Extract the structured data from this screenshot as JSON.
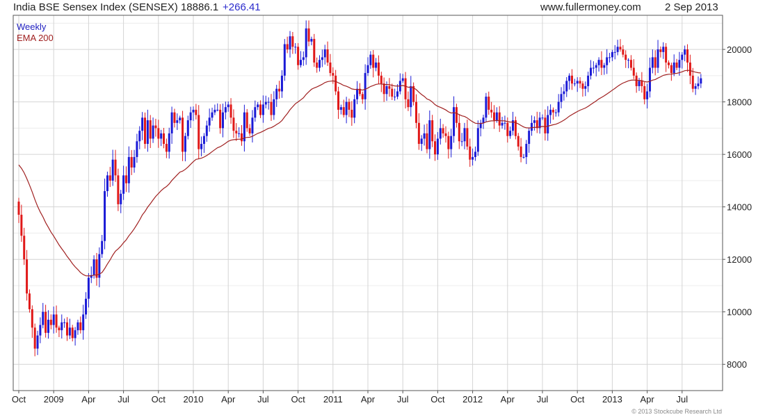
{
  "header": {
    "title": "India BSE Sensex Index (SENSEX) 18886.1",
    "change": "+266.41",
    "site": "www.fullermoney.com",
    "date": "2 Sep 2013"
  },
  "legend": {
    "period": "Weekly",
    "ema": "EMA 200"
  },
  "copyright": "© 2013 Stockcube Research Ltd",
  "colors": {
    "up": "#1a1ad6",
    "down": "#e01818",
    "ema": "#a02020",
    "grid": "#d4d4d4",
    "legendPeriod": "#2020c0",
    "legendEma": "#a02020"
  },
  "chart_data": {
    "type": "candlestick",
    "title": "India BSE Sensex Index (SENSEX)",
    "ylim": [
      7000,
      21300
    ],
    "yticks": [
      8000,
      10000,
      12000,
      14000,
      16000,
      18000,
      20000
    ],
    "xlim": [
      0,
      260
    ],
    "xticks": [
      {
        "label": "Oct",
        "week": 0
      },
      {
        "label": "2009",
        "week": 13
      },
      {
        "label": "Apr",
        "week": 26
      },
      {
        "label": "Jul",
        "week": 39
      },
      {
        "label": "Oct",
        "week": 52
      },
      {
        "label": "2010",
        "week": 65
      },
      {
        "label": "Apr",
        "week": 78
      },
      {
        "label": "Jul",
        "week": 91
      },
      {
        "label": "Oct",
        "week": 104
      },
      {
        "label": "2011",
        "week": 117
      },
      {
        "label": "Apr",
        "week": 130
      },
      {
        "label": "Jul",
        "week": 143
      },
      {
        "label": "Oct",
        "week": 156
      },
      {
        "label": "2012",
        "week": 169
      },
      {
        "label": "Apr",
        "week": 182
      },
      {
        "label": "Jul",
        "week": 195
      },
      {
        "label": "Oct",
        "week": 208
      },
      {
        "label": "2013",
        "week": 221
      },
      {
        "label": "Apr",
        "week": 234
      },
      {
        "label": "Jul",
        "week": 247
      }
    ],
    "grid": true,
    "closes": [
      13700,
      12900,
      12000,
      10700,
      10100,
      9400,
      8600,
      9100,
      9500,
      10000,
      9200,
      9700,
      9500,
      9900,
      9400,
      9300,
      9600,
      9600,
      9100,
      9400,
      9000,
      9300,
      9600,
      9300,
      9900,
      10500,
      11300,
      11400,
      12000,
      11300,
      12200,
      12700,
      14600,
      15200,
      15000,
      15800,
      15200,
      14100,
      14500,
      15200,
      14900,
      15900,
      15500,
      15900,
      16500,
      16900,
      17400,
      16400,
      17300,
      16600,
      17100,
      17000,
      16600,
      16800,
      16400,
      16100,
      16800,
      17600,
      17200,
      17300,
      17400,
      16100,
      16700,
      17300,
      17600,
      17700,
      17500,
      16200,
      16400,
      16700,
      17100,
      17400,
      17600,
      17700,
      17700,
      17000,
      17600,
      17800,
      17900,
      17400,
      16900,
      16800,
      16800,
      16500,
      17600,
      17000,
      16800,
      17400,
      17800,
      17900,
      17500,
      17900,
      18000,
      18000,
      17500,
      18100,
      18500,
      18400,
      19000,
      20200,
      20000,
      20500,
      20100,
      20100,
      19400,
      19600,
      19700,
      20800,
      20300,
      20400,
      19500,
      19300,
      19600,
      19700,
      20000,
      19500,
      19100,
      19000,
      18400,
      17700,
      17800,
      17500,
      18000,
      17700,
      17400,
      18100,
      18500,
      18300,
      18100,
      19100,
      19400,
      19800,
      19300,
      19500,
      19000,
      18700,
      18300,
      18600,
      18500,
      18200,
      18200,
      18400,
      18800,
      18900,
      18100,
      17800,
      18600,
      18000,
      17200,
      16400,
      16600,
      16800,
      16200,
      17300,
      16500,
      16000,
      16600,
      17000,
      16800,
      16700,
      16200,
      16700,
      17800,
      17200,
      16500,
      16500,
      17000,
      16300,
      15800,
      15900,
      16100,
      17000,
      17200,
      17400,
      18200,
      17700,
      17600,
      17300,
      17600,
      17100,
      17200,
      17200,
      16700,
      16900,
      17300,
      16700,
      16300,
      15900,
      15900,
      16400,
      16900,
      17200,
      17300,
      17000,
      17400,
      17400,
      16800,
      17500,
      17700,
      17600,
      17600,
      18000,
      18300,
      18400,
      18800,
      19000,
      18700,
      18700,
      18800,
      18700,
      18500,
      18600,
      19000,
      19300,
      19300,
      19400,
      19600,
      19300,
      19400,
      19700,
      19700,
      19900,
      19900,
      20100,
      20000,
      19800,
      19600,
      19600,
      19300,
      19000,
      18600,
      18800,
      18600,
      18100,
      18400,
      19300,
      19700,
      19300,
      20000,
      19900,
      20100,
      19500,
      19400,
      19100,
      19500,
      19300,
      19600,
      19800,
      20000,
      19500,
      19000,
      18500,
      18600,
      18700,
      18900
    ]
  }
}
